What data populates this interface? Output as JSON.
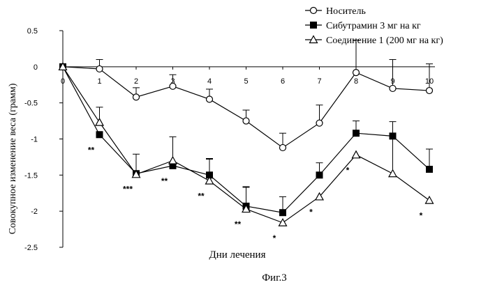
{
  "chart_data": {
    "type": "line",
    "xlabel": "Дни лечения",
    "ylabel": "Совокупное изменение веса (грамм)",
    "caption": "Фиг.3",
    "x": [
      0,
      1,
      2,
      3,
      4,
      5,
      6,
      7,
      8,
      9,
      10
    ],
    "x_tick_labels": [
      "0",
      "1",
      "2",
      "3",
      "4",
      "5",
      "6",
      "7",
      "8",
      "9",
      "10"
    ],
    "xlim": [
      0,
      10
    ],
    "ylim": [
      -2.5,
      0.5
    ],
    "y_ticks": [
      0.5,
      0,
      -0.5,
      -1,
      -1.5,
      -2,
      -2.5
    ],
    "y_tick_labels": [
      "0.5",
      "0",
      "-0.5",
      "-1",
      "-1.5",
      "-2",
      "-2.5"
    ],
    "grid": false,
    "legend_position": "top-right",
    "series": [
      {
        "name": "Носитель",
        "marker": "open-circle",
        "values": [
          0,
          -0.03,
          -0.42,
          -0.27,
          -0.45,
          -0.75,
          -1.12,
          -0.78,
          -0.08,
          -0.3,
          -0.33
        ],
        "error": [
          0,
          0.13,
          0.13,
          0.16,
          0.14,
          0.15,
          0.2,
          0.25,
          0.45,
          0.4,
          0.37
        ]
      },
      {
        "name": "Сибутрамин 3 мг на кг",
        "marker": "filled-square",
        "values": [
          0,
          -0.94,
          -1.48,
          -1.37,
          -1.5,
          -1.93,
          -2.02,
          -1.5,
          -0.92,
          -0.96,
          -1.42
        ],
        "error": [
          0,
          0,
          0.27,
          0,
          0.23,
          0.27,
          0.22,
          0.17,
          0.17,
          0.2,
          0.28
        ]
      },
      {
        "name": "Соединение 1 (200 мг на кг)",
        "marker": "open-triangle",
        "values": [
          0,
          -0.77,
          -1.49,
          -1.3,
          -1.58,
          -1.97,
          -2.16,
          -1.8,
          -1.22,
          -1.48,
          -1.85
        ],
        "error": [
          0,
          0.21,
          0,
          0.33,
          0.3,
          0.3,
          0,
          0,
          0,
          0.5,
          0
        ]
      }
    ],
    "annotations": [
      {
        "x": 1,
        "y": -0.94,
        "text": "**"
      },
      {
        "x": 2,
        "y": -1.48,
        "text": "***"
      },
      {
        "x": 3,
        "y": -1.37,
        "text": "**"
      },
      {
        "x": 4,
        "y": -1.58,
        "text": "**"
      },
      {
        "x": 5,
        "y": -1.97,
        "text": "**"
      },
      {
        "x": 6,
        "y": -2.16,
        "text": "*"
      },
      {
        "x": 7,
        "y": -1.8,
        "text": "*"
      },
      {
        "x": 8,
        "y": -1.22,
        "text": "*"
      },
      {
        "x": 10,
        "y": -1.85,
        "text": "*"
      }
    ]
  }
}
